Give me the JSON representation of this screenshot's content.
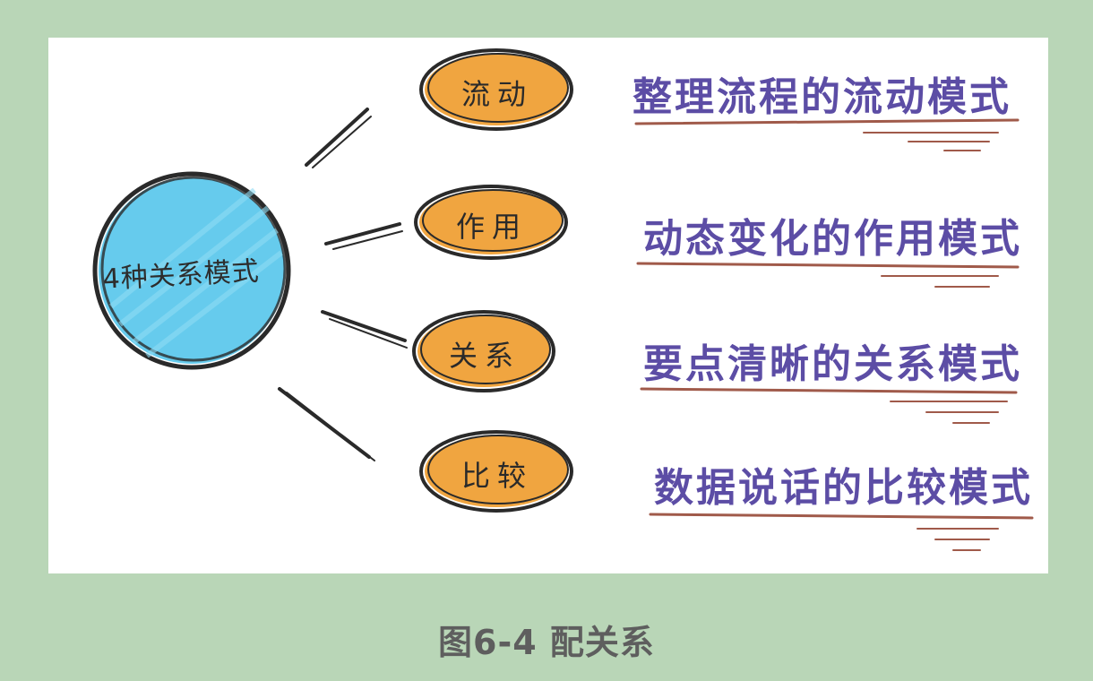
{
  "diagram": {
    "center": "4种关系模式",
    "branches": [
      {
        "label": "流动",
        "description": "整理流程的流动模式"
      },
      {
        "label": "作用",
        "description": "动态变化的作用模式"
      },
      {
        "label": "关系",
        "description": "要点清晰的关系模式"
      },
      {
        "label": "比较",
        "description": "数据说话的比较模式"
      }
    ]
  },
  "caption": "图6-4 配关系",
  "colors": {
    "background": "#b9d6b7",
    "center_fill": "#5ec8ec",
    "pill_fill": "#f0a540",
    "description_text": "#5c4da5",
    "underline": "#a05a4a",
    "ink": "#2a2a2a"
  }
}
